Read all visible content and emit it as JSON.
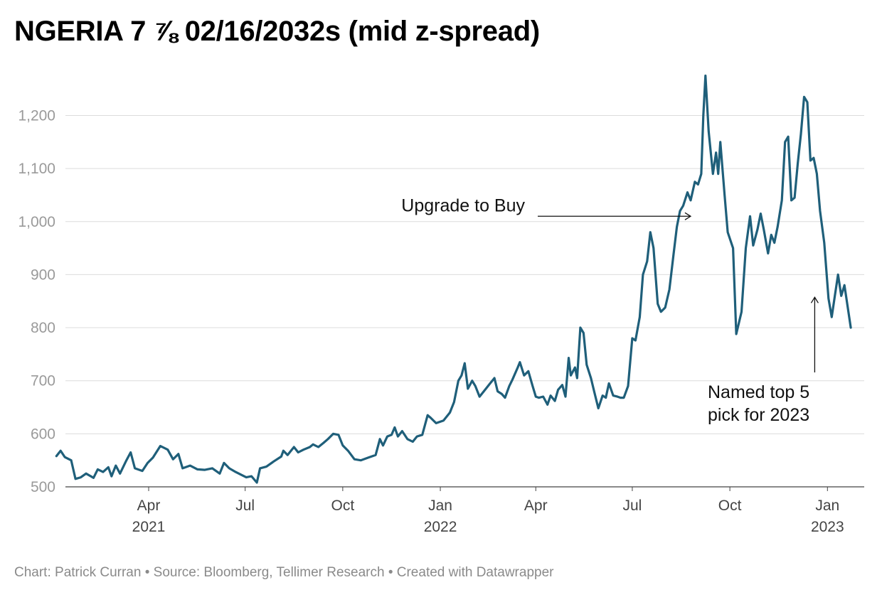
{
  "title": "NGERIA 7 ⅞ 02/16/2032s (mid z-spread)",
  "footer": "Chart: Patrick Curran • Source: Bloomberg, Tellimer Research • Created with Datawrapper",
  "colors": {
    "line": "#1f5f7a",
    "grid": "#dcdcdc",
    "axis": "#9a9a9a",
    "text": "#111111"
  },
  "chart_data": {
    "type": "line",
    "title": "NGERIA 7 ⅞ 02/16/2032s (mid z-spread)",
    "ylim": [
      500,
      1200
    ],
    "y_ticks": [
      {
        "value": 500,
        "label": "500"
      },
      {
        "value": 600,
        "label": "600"
      },
      {
        "value": 700,
        "label": "700"
      },
      {
        "value": 800,
        "label": "800"
      },
      {
        "value": 900,
        "label": "900"
      },
      {
        "value": 1000,
        "label": "1,000"
      },
      {
        "value": 1100,
        "label": "1,100"
      },
      {
        "value": 1200,
        "label": "1,200"
      }
    ],
    "x_range": [
      "2021-01-04",
      "2023-01-23"
    ],
    "x_ticks": [
      {
        "date": "2021-04-01",
        "label": "Apr",
        "sub": "2021"
      },
      {
        "date": "2021-07-01",
        "label": "Jul",
        "sub": ""
      },
      {
        "date": "2021-10-01",
        "label": "Oct",
        "sub": ""
      },
      {
        "date": "2022-01-01",
        "label": "Jan",
        "sub": "2022"
      },
      {
        "date": "2022-04-01",
        "label": "Apr",
        "sub": ""
      },
      {
        "date": "2022-07-01",
        "label": "Jul",
        "sub": ""
      },
      {
        "date": "2022-10-01",
        "label": "Oct",
        "sub": ""
      },
      {
        "date": "2023-01-01",
        "label": "Jan",
        "sub": "2023"
      }
    ],
    "grid": true,
    "series": [
      {
        "points": [
          [
            "2021-01-04",
            558
          ],
          [
            "2021-01-08",
            568
          ],
          [
            "2021-01-12",
            556
          ],
          [
            "2021-01-18",
            550
          ],
          [
            "2021-01-22",
            515
          ],
          [
            "2021-01-27",
            518
          ],
          [
            "2021-02-01",
            525
          ],
          [
            "2021-02-08",
            517
          ],
          [
            "2021-02-12",
            533
          ],
          [
            "2021-02-17",
            528
          ],
          [
            "2021-02-22",
            537
          ],
          [
            "2021-02-25",
            520
          ],
          [
            "2021-03-01",
            540
          ],
          [
            "2021-03-05",
            525
          ],
          [
            "2021-03-11",
            550
          ],
          [
            "2021-03-15",
            565
          ],
          [
            "2021-03-19",
            535
          ],
          [
            "2021-03-26",
            530
          ],
          [
            "2021-03-31",
            545
          ],
          [
            "2021-04-05",
            555
          ],
          [
            "2021-04-12",
            577
          ],
          [
            "2021-04-19",
            570
          ],
          [
            "2021-04-24",
            552
          ],
          [
            "2021-04-29",
            562
          ],
          [
            "2021-05-03",
            535
          ],
          [
            "2021-05-10",
            540
          ],
          [
            "2021-05-17",
            533
          ],
          [
            "2021-05-24",
            532
          ],
          [
            "2021-05-31",
            535
          ],
          [
            "2021-06-07",
            525
          ],
          [
            "2021-06-11",
            545
          ],
          [
            "2021-06-16",
            535
          ],
          [
            "2021-06-22",
            528
          ],
          [
            "2021-06-28",
            522
          ],
          [
            "2021-07-02",
            518
          ],
          [
            "2021-07-07",
            520
          ],
          [
            "2021-07-12",
            508
          ],
          [
            "2021-07-15",
            535
          ],
          [
            "2021-07-21",
            538
          ],
          [
            "2021-07-28",
            548
          ],
          [
            "2021-08-04",
            557
          ],
          [
            "2021-08-06",
            568
          ],
          [
            "2021-08-10",
            560
          ],
          [
            "2021-08-16",
            575
          ],
          [
            "2021-08-20",
            565
          ],
          [
            "2021-08-25",
            570
          ],
          [
            "2021-08-31",
            575
          ],
          [
            "2021-09-03",
            580
          ],
          [
            "2021-09-08",
            575
          ],
          [
            "2021-09-13",
            583
          ],
          [
            "2021-09-17",
            590
          ],
          [
            "2021-09-22",
            600
          ],
          [
            "2021-09-27",
            598
          ],
          [
            "2021-10-01",
            578
          ],
          [
            "2021-10-06",
            568
          ],
          [
            "2021-10-12",
            552
          ],
          [
            "2021-10-18",
            550
          ],
          [
            "2021-10-25",
            555
          ],
          [
            "2021-11-01",
            560
          ],
          [
            "2021-11-05",
            590
          ],
          [
            "2021-11-08",
            578
          ],
          [
            "2021-11-12",
            595
          ],
          [
            "2021-11-16",
            598
          ],
          [
            "2021-11-19",
            612
          ],
          [
            "2021-11-22",
            595
          ],
          [
            "2021-11-26",
            605
          ],
          [
            "2021-12-01",
            590
          ],
          [
            "2021-12-06",
            585
          ],
          [
            "2021-12-10",
            595
          ],
          [
            "2021-12-15",
            598
          ],
          [
            "2021-12-20",
            635
          ],
          [
            "2021-12-23",
            630
          ],
          [
            "2021-12-28",
            620
          ],
          [
            "2022-01-04",
            625
          ],
          [
            "2022-01-10",
            640
          ],
          [
            "2022-01-14",
            660
          ],
          [
            "2022-01-18",
            700
          ],
          [
            "2022-01-21",
            710
          ],
          [
            "2022-01-24",
            733
          ],
          [
            "2022-01-27",
            685
          ],
          [
            "2022-01-31",
            700
          ],
          [
            "2022-02-03",
            690
          ],
          [
            "2022-02-07",
            670
          ],
          [
            "2022-02-11",
            680
          ],
          [
            "2022-02-17",
            695
          ],
          [
            "2022-02-21",
            705
          ],
          [
            "2022-02-24",
            680
          ],
          [
            "2022-02-28",
            675
          ],
          [
            "2022-03-03",
            668
          ],
          [
            "2022-03-07",
            690
          ],
          [
            "2022-03-10",
            702
          ],
          [
            "2022-03-15",
            725
          ],
          [
            "2022-03-17",
            735
          ],
          [
            "2022-03-21",
            710
          ],
          [
            "2022-03-25",
            718
          ],
          [
            "2022-03-29",
            690
          ],
          [
            "2022-04-01",
            670
          ],
          [
            "2022-04-04",
            668
          ],
          [
            "2022-04-08",
            670
          ],
          [
            "2022-04-12",
            655
          ],
          [
            "2022-04-15",
            672
          ],
          [
            "2022-04-19",
            662
          ],
          [
            "2022-04-22",
            683
          ],
          [
            "2022-04-26",
            692
          ],
          [
            "2022-04-29",
            670
          ],
          [
            "2022-05-02",
            743
          ],
          [
            "2022-05-04",
            710
          ],
          [
            "2022-05-08",
            725
          ],
          [
            "2022-05-10",
            705
          ],
          [
            "2022-05-13",
            800
          ],
          [
            "2022-05-16",
            790
          ],
          [
            "2022-05-19",
            730
          ],
          [
            "2022-05-23",
            705
          ],
          [
            "2022-05-26",
            680
          ],
          [
            "2022-05-30",
            648
          ],
          [
            "2022-06-03",
            672
          ],
          [
            "2022-06-06",
            668
          ],
          [
            "2022-06-09",
            695
          ],
          [
            "2022-06-13",
            672
          ],
          [
            "2022-06-17",
            670
          ],
          [
            "2022-06-20",
            668
          ],
          [
            "2022-06-23",
            668
          ],
          [
            "2022-06-27",
            690
          ],
          [
            "2022-07-01",
            780
          ],
          [
            "2022-07-04",
            776
          ],
          [
            "2022-07-08",
            820
          ],
          [
            "2022-07-11",
            900
          ],
          [
            "2022-07-15",
            925
          ],
          [
            "2022-07-18",
            980
          ],
          [
            "2022-07-21",
            950
          ],
          [
            "2022-07-25",
            845
          ],
          [
            "2022-07-28",
            830
          ],
          [
            "2022-08-01",
            838
          ],
          [
            "2022-08-05",
            872
          ],
          [
            "2022-08-09",
            940
          ],
          [
            "2022-08-12",
            990
          ],
          [
            "2022-08-15",
            1020
          ],
          [
            "2022-08-18",
            1030
          ],
          [
            "2022-08-22",
            1055
          ],
          [
            "2022-08-25",
            1040
          ],
          [
            "2022-08-29",
            1075
          ],
          [
            "2022-09-01",
            1070
          ],
          [
            "2022-09-04",
            1090
          ],
          [
            "2022-09-06",
            1200
          ],
          [
            "2022-09-08",
            1275
          ],
          [
            "2022-09-11",
            1170
          ],
          [
            "2022-09-15",
            1090
          ],
          [
            "2022-09-18",
            1130
          ],
          [
            "2022-09-20",
            1090
          ],
          [
            "2022-09-22",
            1150
          ],
          [
            "2022-09-26",
            1050
          ],
          [
            "2022-09-29",
            980
          ],
          [
            "2022-10-04",
            950
          ],
          [
            "2022-10-07",
            788
          ],
          [
            "2022-10-12",
            830
          ],
          [
            "2022-10-16",
            950
          ],
          [
            "2022-10-20",
            1010
          ],
          [
            "2022-10-23",
            955
          ],
          [
            "2022-10-27",
            985
          ],
          [
            "2022-10-30",
            1015
          ],
          [
            "2022-11-02",
            985
          ],
          [
            "2022-11-06",
            940
          ],
          [
            "2022-11-09",
            975
          ],
          [
            "2022-11-12",
            960
          ],
          [
            "2022-11-15",
            990
          ],
          [
            "2022-11-19",
            1040
          ],
          [
            "2022-11-22",
            1150
          ],
          [
            "2022-11-25",
            1160
          ],
          [
            "2022-11-28",
            1040
          ],
          [
            "2022-12-01",
            1045
          ],
          [
            "2022-12-04",
            1110
          ],
          [
            "2022-12-07",
            1165
          ],
          [
            "2022-12-10",
            1235
          ],
          [
            "2022-12-13",
            1225
          ],
          [
            "2022-12-16",
            1115
          ],
          [
            "2022-12-19",
            1120
          ],
          [
            "2022-12-22",
            1090
          ],
          [
            "2022-12-25",
            1020
          ],
          [
            "2022-12-29",
            960
          ],
          [
            "2023-01-02",
            855
          ],
          [
            "2023-01-05",
            820
          ],
          [
            "2023-01-08",
            860
          ],
          [
            "2023-01-11",
            900
          ],
          [
            "2023-01-14",
            860
          ],
          [
            "2023-01-17",
            880
          ],
          [
            "2023-01-23",
            800
          ]
        ]
      }
    ],
    "annotations": [
      {
        "text": "Upgrade to Buy",
        "date": "2022-08-25",
        "value": 1010
      },
      {
        "text": "Named top 5",
        "text2": "pick for 2023",
        "date": "2022-12-20",
        "value": 868
      }
    ]
  }
}
